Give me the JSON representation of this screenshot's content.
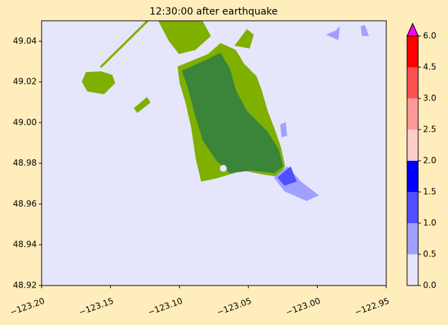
{
  "chart_data": {
    "type": "map",
    "title": "12:30:00 after earthquake",
    "xlim": [
      -123.2,
      -122.95
    ],
    "xticks": [
      {
        "value": -123.2,
        "label": "−123.20"
      },
      {
        "value": -123.15,
        "label": "−123.15"
      },
      {
        "value": -123.1,
        "label": "−123.10"
      },
      {
        "value": -123.05,
        "label": "−123.05"
      },
      {
        "value": -123.0,
        "label": "−123.00"
      },
      {
        "value": -122.95,
        "label": "−122.95"
      }
    ],
    "ylim": [
      48.92,
      49.05
    ],
    "yticks": [
      48.92,
      48.94,
      48.96,
      48.98,
      {
        "value": 49.0,
        "label": "49.00"
      },
      49.02,
      49.04
    ],
    "background": "#e5e5fc",
    "colorbar": {
      "ticks": [
        {
          "value": 0,
          "label": "0.0"
        },
        {
          "value": 0.5,
          "label": "0.5"
        },
        {
          "value": 1,
          "label": "1.0"
        },
        {
          "value": 1.5,
          "label": "1.5"
        },
        {
          "value": 2,
          "label": "2.0"
        },
        {
          "value": 2.5,
          "label": "2.5"
        },
        {
          "value": 3,
          "label": "3.0"
        },
        {
          "value": 4.5,
          "label": "4.5"
        },
        {
          "value": 6,
          "label": "6.0"
        }
      ],
      "colors": [
        "#e5e5fc",
        "#a0a0ff",
        "#5050ff",
        "#0000ff",
        "#ffcccc",
        "#ff9999",
        "#ff5050",
        "#ff0000"
      ],
      "extend_color": "#ff00ff"
    }
  }
}
